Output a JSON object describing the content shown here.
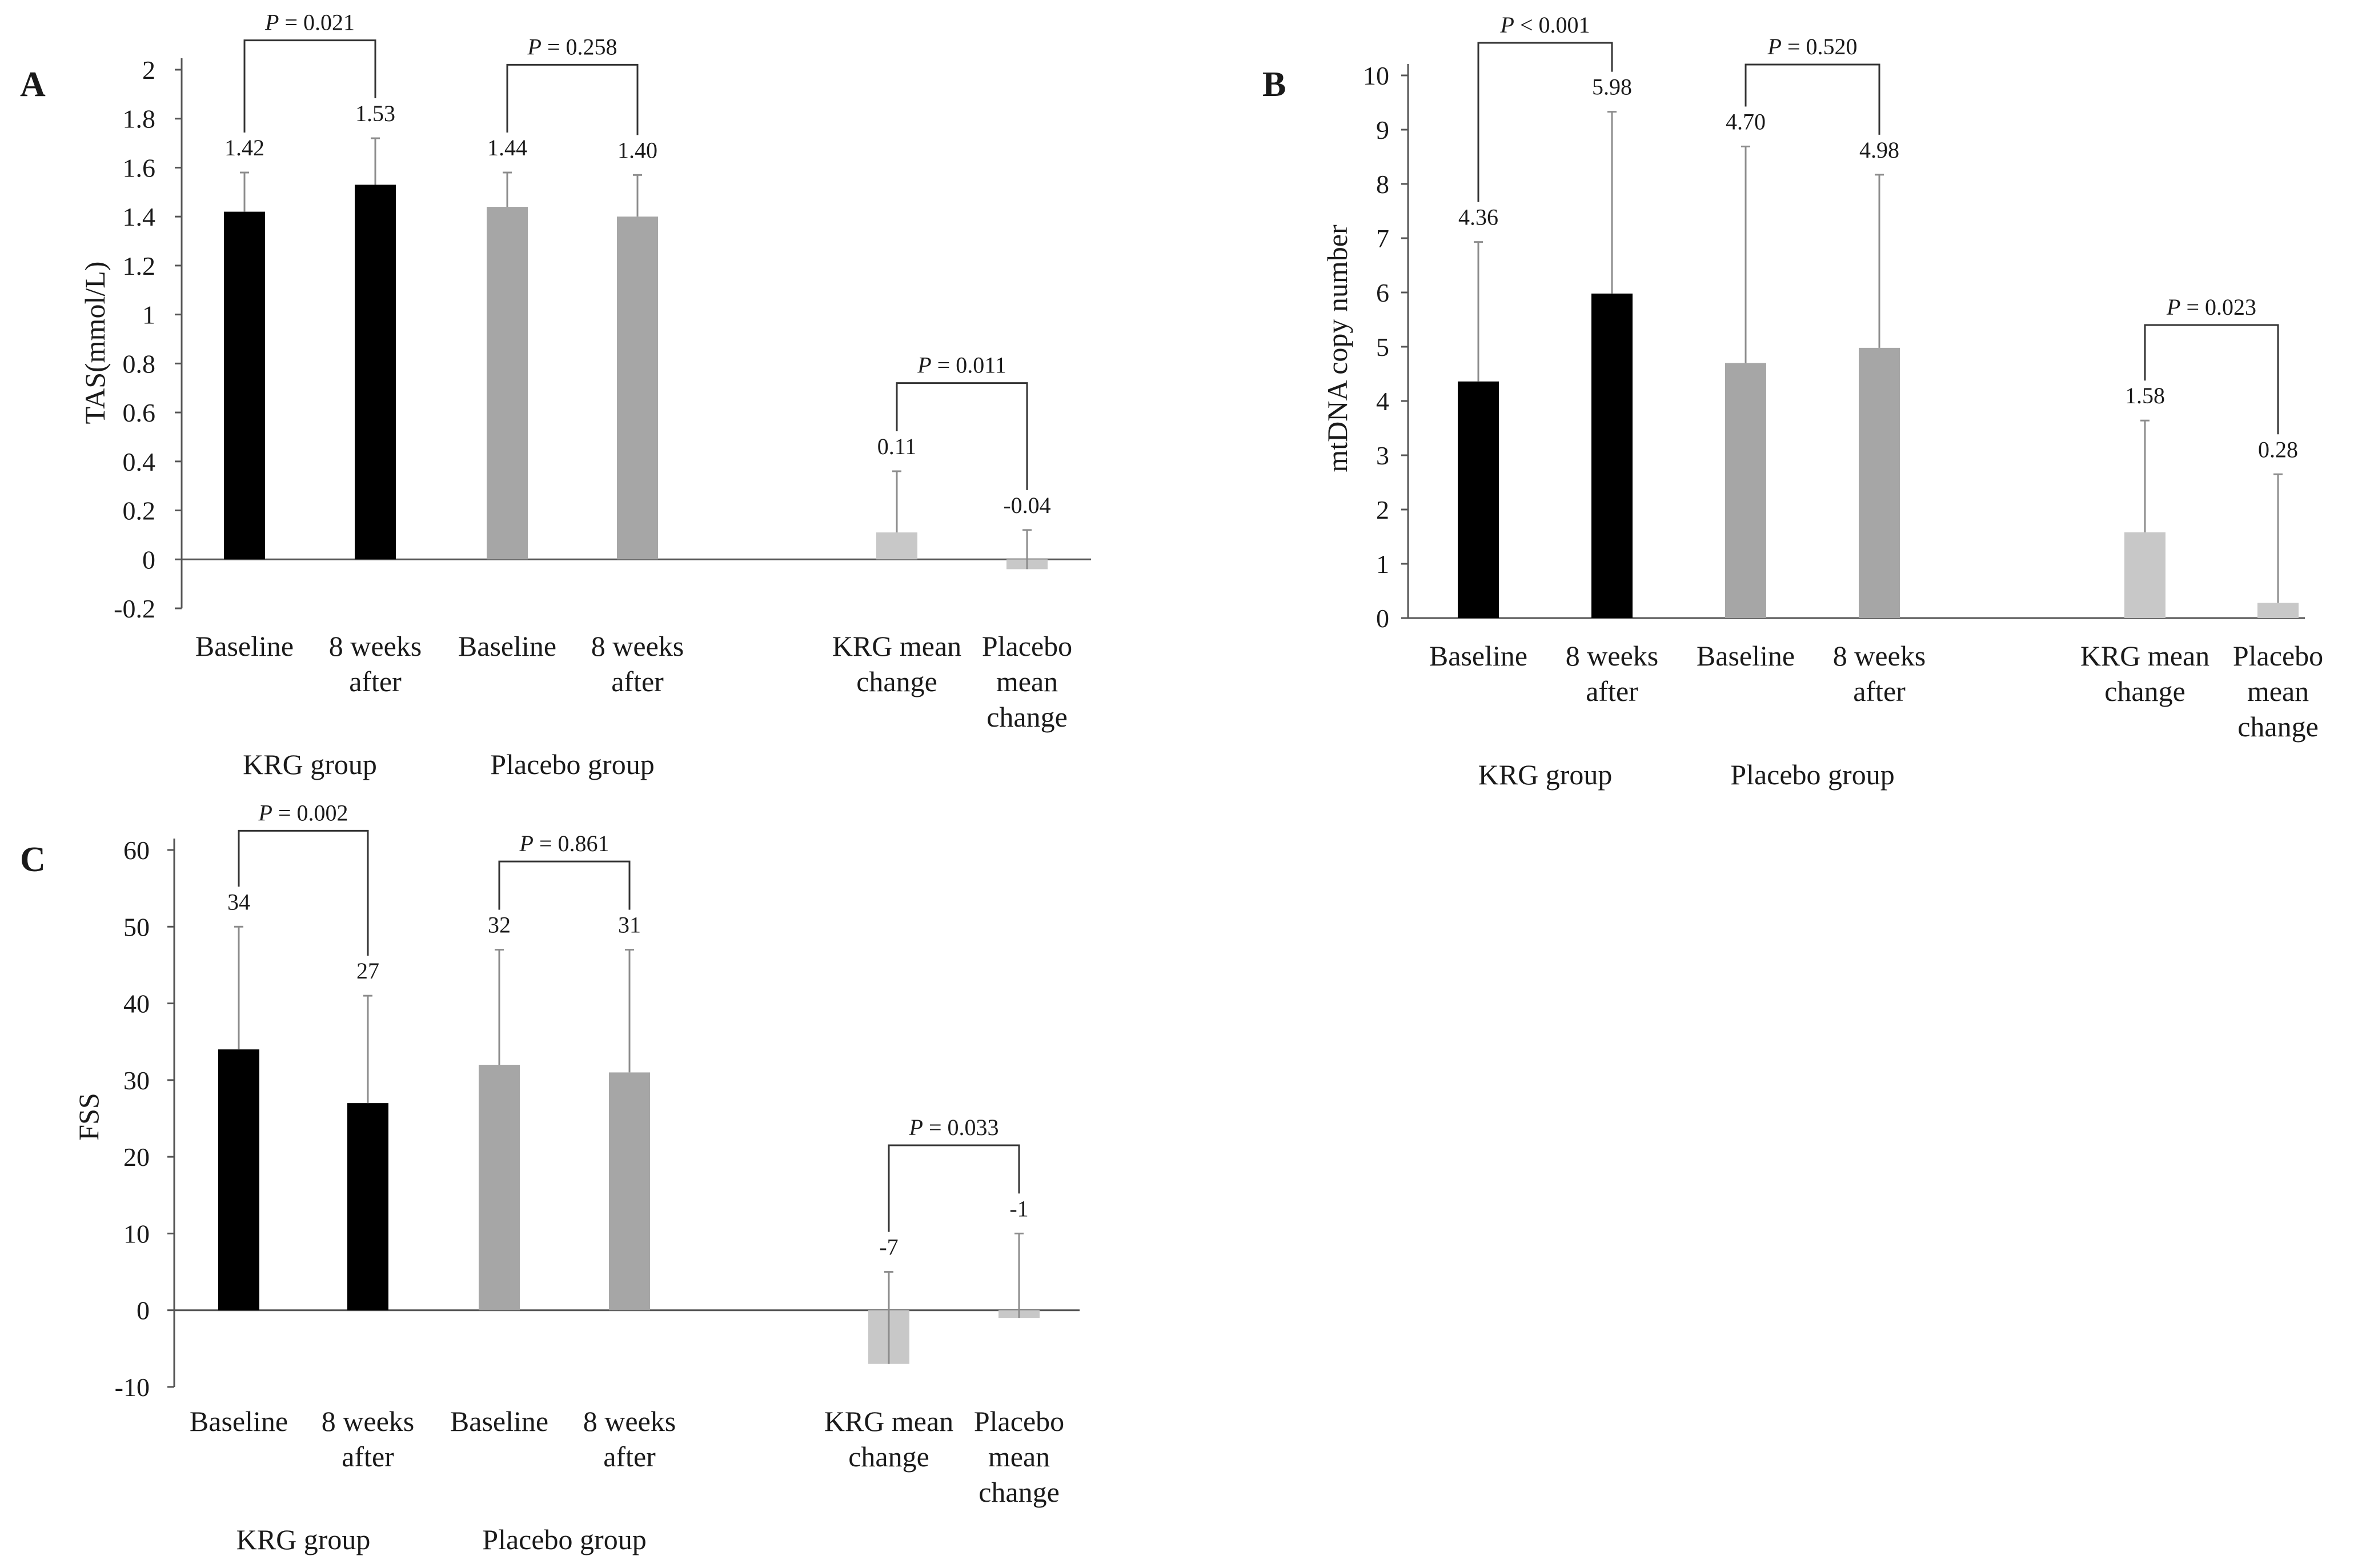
{
  "chart_data": [
    {
      "panel": "A",
      "type": "bar",
      "ylabel": "TAS(mmol/L)",
      "ylim": [
        -0.2,
        2
      ],
      "ticks": [
        "-0.2",
        "0",
        "0.2",
        "0.4",
        "0.6",
        "0.8",
        "1",
        "1.2",
        "1.4",
        "1.6",
        "1.8",
        "2"
      ],
      "grid": false,
      "colors": {
        "krg": "#000000",
        "placebo": "#a6a6a6",
        "change": "#c8c8c8"
      },
      "bars": [
        {
          "category": [
            "Baseline"
          ],
          "value": 1.42,
          "label": "1.42",
          "err": 0.16,
          "color": "krg"
        },
        {
          "category": [
            "8 weeks",
            "after"
          ],
          "value": 1.53,
          "label": "1.53",
          "err": 0.19,
          "color": "krg"
        },
        {
          "category": [
            "Baseline"
          ],
          "value": 1.44,
          "label": "1.44",
          "err": 0.14,
          "color": "placebo"
        },
        {
          "category": [
            "8 weeks",
            "after"
          ],
          "value": 1.4,
          "label": "1.40",
          "err": 0.17,
          "color": "placebo"
        },
        {
          "category": [
            "KRG mean",
            "change"
          ],
          "value": 0.11,
          "label": "0.11",
          "err": 0.25,
          "color": "change"
        },
        {
          "category": [
            "Placebo",
            "mean",
            "change"
          ],
          "value": -0.04,
          "label": "-0.04",
          "err": 0.16,
          "color": "change"
        }
      ],
      "groups": [
        {
          "label": "KRG group",
          "from": 0,
          "to": 1
        },
        {
          "label": "Placebo group",
          "from": 2,
          "to": 3
        }
      ],
      "comparisons": [
        {
          "from": 0,
          "to": 1,
          "italic": "P",
          "text": " = 0.021",
          "top": 2.12
        },
        {
          "from": 2,
          "to": 3,
          "italic": "P",
          "text": " = 0.258",
          "top": 2.02
        },
        {
          "from": 4,
          "to": 5,
          "italic": "P",
          "text": " = 0.011",
          "top": 0.72
        }
      ]
    },
    {
      "panel": "B",
      "type": "bar",
      "ylabel": "mtDNA copy number",
      "ylim": [
        0,
        10
      ],
      "ticks": [
        "0",
        "1",
        "2",
        "3",
        "4",
        "5",
        "6",
        "7",
        "8",
        "9",
        "10"
      ],
      "grid": false,
      "colors": {
        "krg": "#000000",
        "placebo": "#a6a6a6",
        "change": "#c8c8c8"
      },
      "bars": [
        {
          "category": [
            "Baseline"
          ],
          "value": 4.36,
          "label": "4.36",
          "err": 2.57,
          "color": "krg"
        },
        {
          "category": [
            "8 weeks",
            "after"
          ],
          "value": 5.98,
          "label": "5.98",
          "err": 3.35,
          "color": "krg"
        },
        {
          "category": [
            "Baseline"
          ],
          "value": 4.7,
          "label": "4.70",
          "err": 3.99,
          "color": "placebo"
        },
        {
          "category": [
            "8 weeks",
            "after"
          ],
          "value": 4.98,
          "label": "4.98",
          "err": 3.19,
          "color": "placebo"
        },
        {
          "category": [
            "KRG mean",
            "change"
          ],
          "value": 1.58,
          "label": "1.58",
          "err": 2.06,
          "color": "change"
        },
        {
          "category": [
            "Placebo",
            "mean",
            "change"
          ],
          "value": 0.28,
          "label": "0.28",
          "err": 2.37,
          "color": "change"
        }
      ],
      "groups": [
        {
          "label": "KRG group",
          "from": 0,
          "to": 1
        },
        {
          "label": "Placebo group",
          "from": 2,
          "to": 3
        }
      ],
      "comparisons": [
        {
          "from": 0,
          "to": 1,
          "italic": "P",
          "text": " < 0.001",
          "top": 10.6
        },
        {
          "from": 2,
          "to": 3,
          "italic": "P",
          "text": " = 0.520",
          "top": 10.2
        },
        {
          "from": 4,
          "to": 5,
          "italic": "P",
          "text": " = 0.023",
          "top": 5.4
        }
      ]
    },
    {
      "panel": "C",
      "type": "bar",
      "ylabel": "FSS",
      "ylim": [
        -10,
        60
      ],
      "ticks": [
        "-10",
        "0",
        "10",
        "20",
        "30",
        "40",
        "50",
        "60"
      ],
      "grid": false,
      "colors": {
        "krg": "#000000",
        "placebo": "#a6a6a6",
        "change": "#c8c8c8"
      },
      "bars": [
        {
          "category": [
            "Baseline"
          ],
          "value": 34,
          "label": "34",
          "err": 16,
          "color": "krg"
        },
        {
          "category": [
            "8 weeks",
            "after"
          ],
          "value": 27,
          "label": "27",
          "err": 14,
          "color": "krg"
        },
        {
          "category": [
            "Baseline"
          ],
          "value": 32,
          "label": "32",
          "err": 15,
          "color": "placebo"
        },
        {
          "category": [
            "8 weeks",
            "after"
          ],
          "value": 31,
          "label": "31",
          "err": 16,
          "color": "placebo"
        },
        {
          "category": [
            "KRG mean",
            "change"
          ],
          "value": -7,
          "label": "-7",
          "err": 12,
          "color": "change"
        },
        {
          "category": [
            "Placebo",
            "mean",
            "change"
          ],
          "value": -1,
          "label": "-1",
          "err": 11,
          "color": "change"
        }
      ],
      "groups": [
        {
          "label": "KRG group",
          "from": 0,
          "to": 1
        },
        {
          "label": "Placebo group",
          "from": 2,
          "to": 3
        }
      ],
      "comparisons": [
        {
          "from": 0,
          "to": 1,
          "italic": "P",
          "text": " = 0.002",
          "top": 62.5
        },
        {
          "from": 2,
          "to": 3,
          "italic": "P",
          "text": " = 0.861",
          "top": 58.5
        },
        {
          "from": 4,
          "to": 5,
          "italic": "P",
          "text": " =  0.033",
          "top": 21.5
        }
      ]
    }
  ]
}
